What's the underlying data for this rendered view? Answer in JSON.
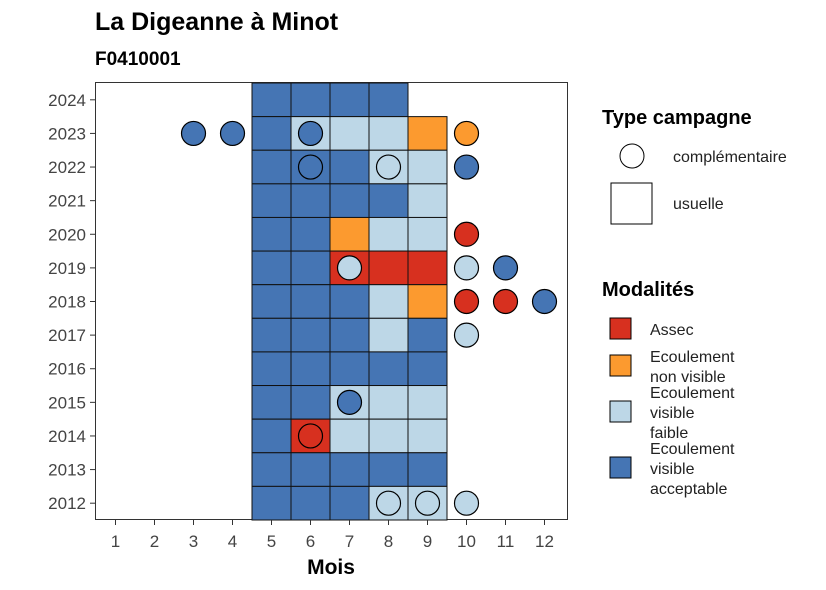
{
  "chart_data": {
    "type": "heatmap",
    "title": "La Digeanne à Minot",
    "subtitle": "F0410001",
    "xlabel": "Mois",
    "ylabel": "",
    "x_ticks": [
      "1",
      "2",
      "3",
      "4",
      "5",
      "6",
      "7",
      "8",
      "9",
      "10",
      "11",
      "12"
    ],
    "y_ticks": [
      "2012",
      "2013",
      "2014",
      "2015",
      "2016",
      "2017",
      "2018",
      "2019",
      "2020",
      "2021",
      "2022",
      "2023",
      "2024"
    ],
    "xlim": [
      0.5,
      12.5
    ],
    "ylim": [
      2011.5,
      2024.5
    ],
    "grid": false,
    "categories_colors": {
      "assec": "#d7301f",
      "ecoulement_non_visible": "#fc9a2f",
      "ecoulement_visible_faible": "#bdd7e7",
      "ecoulement_visible_acceptable": "#4575b4"
    },
    "legend_campaign": {
      "title": "Type campagne",
      "items": [
        {
          "shape": "circle",
          "label": "complémentaire"
        },
        {
          "shape": "square",
          "label": "usuelle"
        }
      ]
    },
    "legend_modalites": {
      "title": "Modalités",
      "items": [
        {
          "key": "assec",
          "color": "#d7301f",
          "lines": [
            "Assec"
          ]
        },
        {
          "key": "ecoulement_non_visible",
          "color": "#fc9a2f",
          "lines": [
            "Ecoulement",
            "non visible"
          ]
        },
        {
          "key": "ecoulement_visible_faible",
          "color": "#bdd7e7",
          "lines": [
            "Ecoulement",
            "visible",
            "faible"
          ]
        },
        {
          "key": "ecoulement_visible_acceptable",
          "color": "#4575b4",
          "lines": [
            "Ecoulement",
            "visible",
            "acceptable"
          ]
        }
      ]
    },
    "usuelle": [
      {
        "year": 2024,
        "month": 5,
        "mod": "ecoulement_visible_acceptable"
      },
      {
        "year": 2024,
        "month": 6,
        "mod": "ecoulement_visible_acceptable"
      },
      {
        "year": 2024,
        "month": 7,
        "mod": "ecoulement_visible_acceptable"
      },
      {
        "year": 2024,
        "month": 8,
        "mod": "ecoulement_visible_acceptable"
      },
      {
        "year": 2023,
        "month": 5,
        "mod": "ecoulement_visible_acceptable"
      },
      {
        "year": 2023,
        "month": 6,
        "mod": "ecoulement_visible_faible"
      },
      {
        "year": 2023,
        "month": 7,
        "mod": "ecoulement_visible_faible"
      },
      {
        "year": 2023,
        "month": 8,
        "mod": "ecoulement_visible_faible"
      },
      {
        "year": 2023,
        "month": 9,
        "mod": "ecoulement_non_visible"
      },
      {
        "year": 2022,
        "month": 5,
        "mod": "ecoulement_visible_acceptable"
      },
      {
        "year": 2022,
        "month": 6,
        "mod": "ecoulement_visible_acceptable"
      },
      {
        "year": 2022,
        "month": 7,
        "mod": "ecoulement_visible_acceptable"
      },
      {
        "year": 2022,
        "month": 8,
        "mod": "ecoulement_visible_faible"
      },
      {
        "year": 2022,
        "month": 9,
        "mod": "ecoulement_visible_faible"
      },
      {
        "year": 2021,
        "month": 5,
        "mod": "ecoulement_visible_acceptable"
      },
      {
        "year": 2021,
        "month": 6,
        "mod": "ecoulement_visible_acceptable"
      },
      {
        "year": 2021,
        "month": 7,
        "mod": "ecoulement_visible_acceptable"
      },
      {
        "year": 2021,
        "month": 8,
        "mod": "ecoulement_visible_acceptable"
      },
      {
        "year": 2021,
        "month": 9,
        "mod": "ecoulement_visible_faible"
      },
      {
        "year": 2020,
        "month": 5,
        "mod": "ecoulement_visible_acceptable"
      },
      {
        "year": 2020,
        "month": 6,
        "mod": "ecoulement_visible_acceptable"
      },
      {
        "year": 2020,
        "month": 7,
        "mod": "ecoulement_non_visible"
      },
      {
        "year": 2020,
        "month": 8,
        "mod": "ecoulement_visible_faible"
      },
      {
        "year": 2020,
        "month": 9,
        "mod": "ecoulement_visible_faible"
      },
      {
        "year": 2019,
        "month": 5,
        "mod": "ecoulement_visible_acceptable"
      },
      {
        "year": 2019,
        "month": 6,
        "mod": "ecoulement_visible_acceptable"
      },
      {
        "year": 2019,
        "month": 7,
        "mod": "assec"
      },
      {
        "year": 2019,
        "month": 8,
        "mod": "assec"
      },
      {
        "year": 2019,
        "month": 9,
        "mod": "assec"
      },
      {
        "year": 2018,
        "month": 5,
        "mod": "ecoulement_visible_acceptable"
      },
      {
        "year": 2018,
        "month": 6,
        "mod": "ecoulement_visible_acceptable"
      },
      {
        "year": 2018,
        "month": 7,
        "mod": "ecoulement_visible_acceptable"
      },
      {
        "year": 2018,
        "month": 8,
        "mod": "ecoulement_visible_faible"
      },
      {
        "year": 2018,
        "month": 9,
        "mod": "ecoulement_non_visible"
      },
      {
        "year": 2017,
        "month": 5,
        "mod": "ecoulement_visible_acceptable"
      },
      {
        "year": 2017,
        "month": 6,
        "mod": "ecoulement_visible_acceptable"
      },
      {
        "year": 2017,
        "month": 7,
        "mod": "ecoulement_visible_acceptable"
      },
      {
        "year": 2017,
        "month": 8,
        "mod": "ecoulement_visible_faible"
      },
      {
        "year": 2017,
        "month": 9,
        "mod": "ecoulement_visible_acceptable"
      },
      {
        "year": 2016,
        "month": 5,
        "mod": "ecoulement_visible_acceptable"
      },
      {
        "year": 2016,
        "month": 6,
        "mod": "ecoulement_visible_acceptable"
      },
      {
        "year": 2016,
        "month": 7,
        "mod": "ecoulement_visible_acceptable"
      },
      {
        "year": 2016,
        "month": 8,
        "mod": "ecoulement_visible_acceptable"
      },
      {
        "year": 2016,
        "month": 9,
        "mod": "ecoulement_visible_acceptable"
      },
      {
        "year": 2015,
        "month": 5,
        "mod": "ecoulement_visible_acceptable"
      },
      {
        "year": 2015,
        "month": 6,
        "mod": "ecoulement_visible_acceptable"
      },
      {
        "year": 2015,
        "month": 7,
        "mod": "ecoulement_visible_faible"
      },
      {
        "year": 2015,
        "month": 8,
        "mod": "ecoulement_visible_faible"
      },
      {
        "year": 2015,
        "month": 9,
        "mod": "ecoulement_visible_faible"
      },
      {
        "year": 2014,
        "month": 5,
        "mod": "ecoulement_visible_acceptable"
      },
      {
        "year": 2014,
        "month": 6,
        "mod": "assec"
      },
      {
        "year": 2014,
        "month": 7,
        "mod": "ecoulement_visible_faible"
      },
      {
        "year": 2014,
        "month": 8,
        "mod": "ecoulement_visible_faible"
      },
      {
        "year": 2014,
        "month": 9,
        "mod": "ecoulement_visible_faible"
      },
      {
        "year": 2013,
        "month": 5,
        "mod": "ecoulement_visible_acceptable"
      },
      {
        "year": 2013,
        "month": 6,
        "mod": "ecoulement_visible_acceptable"
      },
      {
        "year": 2013,
        "month": 7,
        "mod": "ecoulement_visible_acceptable"
      },
      {
        "year": 2013,
        "month": 8,
        "mod": "ecoulement_visible_acceptable"
      },
      {
        "year": 2013,
        "month": 9,
        "mod": "ecoulement_visible_acceptable"
      },
      {
        "year": 2012,
        "month": 5,
        "mod": "ecoulement_visible_acceptable"
      },
      {
        "year": 2012,
        "month": 6,
        "mod": "ecoulement_visible_acceptable"
      },
      {
        "year": 2012,
        "month": 7,
        "mod": "ecoulement_visible_acceptable"
      },
      {
        "year": 2012,
        "month": 8,
        "mod": "ecoulement_visible_faible"
      },
      {
        "year": 2012,
        "month": 9,
        "mod": "ecoulement_visible_faible"
      }
    ],
    "complementaire": [
      {
        "year": 2023,
        "month": 3,
        "mod": "ecoulement_visible_acceptable"
      },
      {
        "year": 2023,
        "month": 4,
        "mod": "ecoulement_visible_acceptable"
      },
      {
        "year": 2023,
        "month": 6,
        "mod": "ecoulement_visible_acceptable"
      },
      {
        "year": 2023,
        "month": 10,
        "mod": "ecoulement_non_visible"
      },
      {
        "year": 2022,
        "month": 6,
        "mod": "ecoulement_visible_acceptable"
      },
      {
        "year": 2022,
        "month": 8,
        "mod": "ecoulement_visible_faible"
      },
      {
        "year": 2022,
        "month": 10,
        "mod": "ecoulement_visible_acceptable"
      },
      {
        "year": 2020,
        "month": 10,
        "mod": "assec"
      },
      {
        "year": 2019,
        "month": 7,
        "mod": "ecoulement_visible_faible"
      },
      {
        "year": 2019,
        "month": 10,
        "mod": "ecoulement_visible_faible"
      },
      {
        "year": 2019,
        "month": 11,
        "mod": "ecoulement_visible_acceptable"
      },
      {
        "year": 2018,
        "month": 10,
        "mod": "assec"
      },
      {
        "year": 2018,
        "month": 11,
        "mod": "assec"
      },
      {
        "year": 2018,
        "month": 12,
        "mod": "ecoulement_visible_acceptable"
      },
      {
        "year": 2017,
        "month": 10,
        "mod": "ecoulement_visible_faible"
      },
      {
        "year": 2015,
        "month": 7,
        "mod": "ecoulement_visible_acceptable"
      },
      {
        "year": 2014,
        "month": 6,
        "mod": "assec"
      },
      {
        "year": 2012,
        "month": 8,
        "mod": "ecoulement_visible_faible"
      },
      {
        "year": 2012,
        "month": 9,
        "mod": "ecoulement_visible_faible"
      },
      {
        "year": 2012,
        "month": 10,
        "mod": "ecoulement_visible_faible"
      }
    ]
  }
}
